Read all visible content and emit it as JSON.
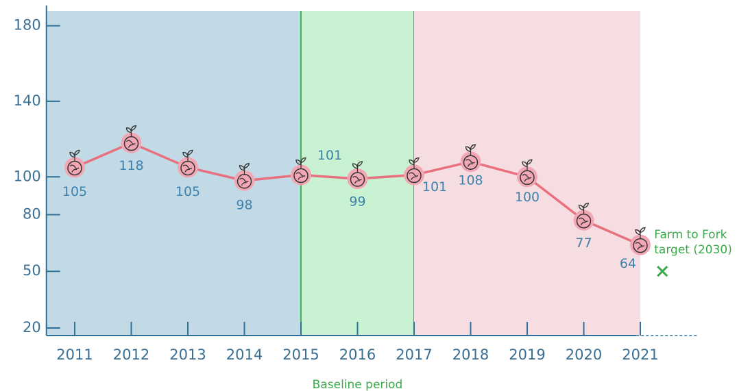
{
  "chart_data": {
    "type": "line",
    "x": [
      2011,
      2012,
      2013,
      2014,
      2015,
      2016,
      2017,
      2018,
      2019,
      2020,
      2021
    ],
    "series": [
      {
        "color": "#e8707f",
        "values": [
          105,
          118,
          105,
          98,
          101,
          99,
          101,
          108,
          100,
          77,
          64
        ]
      }
    ],
    "xlim": [
      2010.5,
      2021.9
    ],
    "xticks": [
      2011,
      2012,
      2013,
      2014,
      2015,
      2016,
      2017,
      2018,
      2019,
      2020,
      2021
    ],
    "ylim": [
      16,
      190
    ],
    "yticks": [
      20,
      50,
      80,
      100,
      140,
      180
    ],
    "bands": [
      {
        "from": 2010.5,
        "to": 2015,
        "color": "#c2dae5"
      },
      {
        "from": 2015,
        "to": 2017,
        "color": "#c9f2d3",
        "label": "Baseline period"
      },
      {
        "from": 2017,
        "to": 2021,
        "color": "#f6dde1"
      }
    ],
    "target": {
      "label": "Farm to Fork target (2030)",
      "value": 50,
      "color": "#3aaa4a"
    }
  }
}
